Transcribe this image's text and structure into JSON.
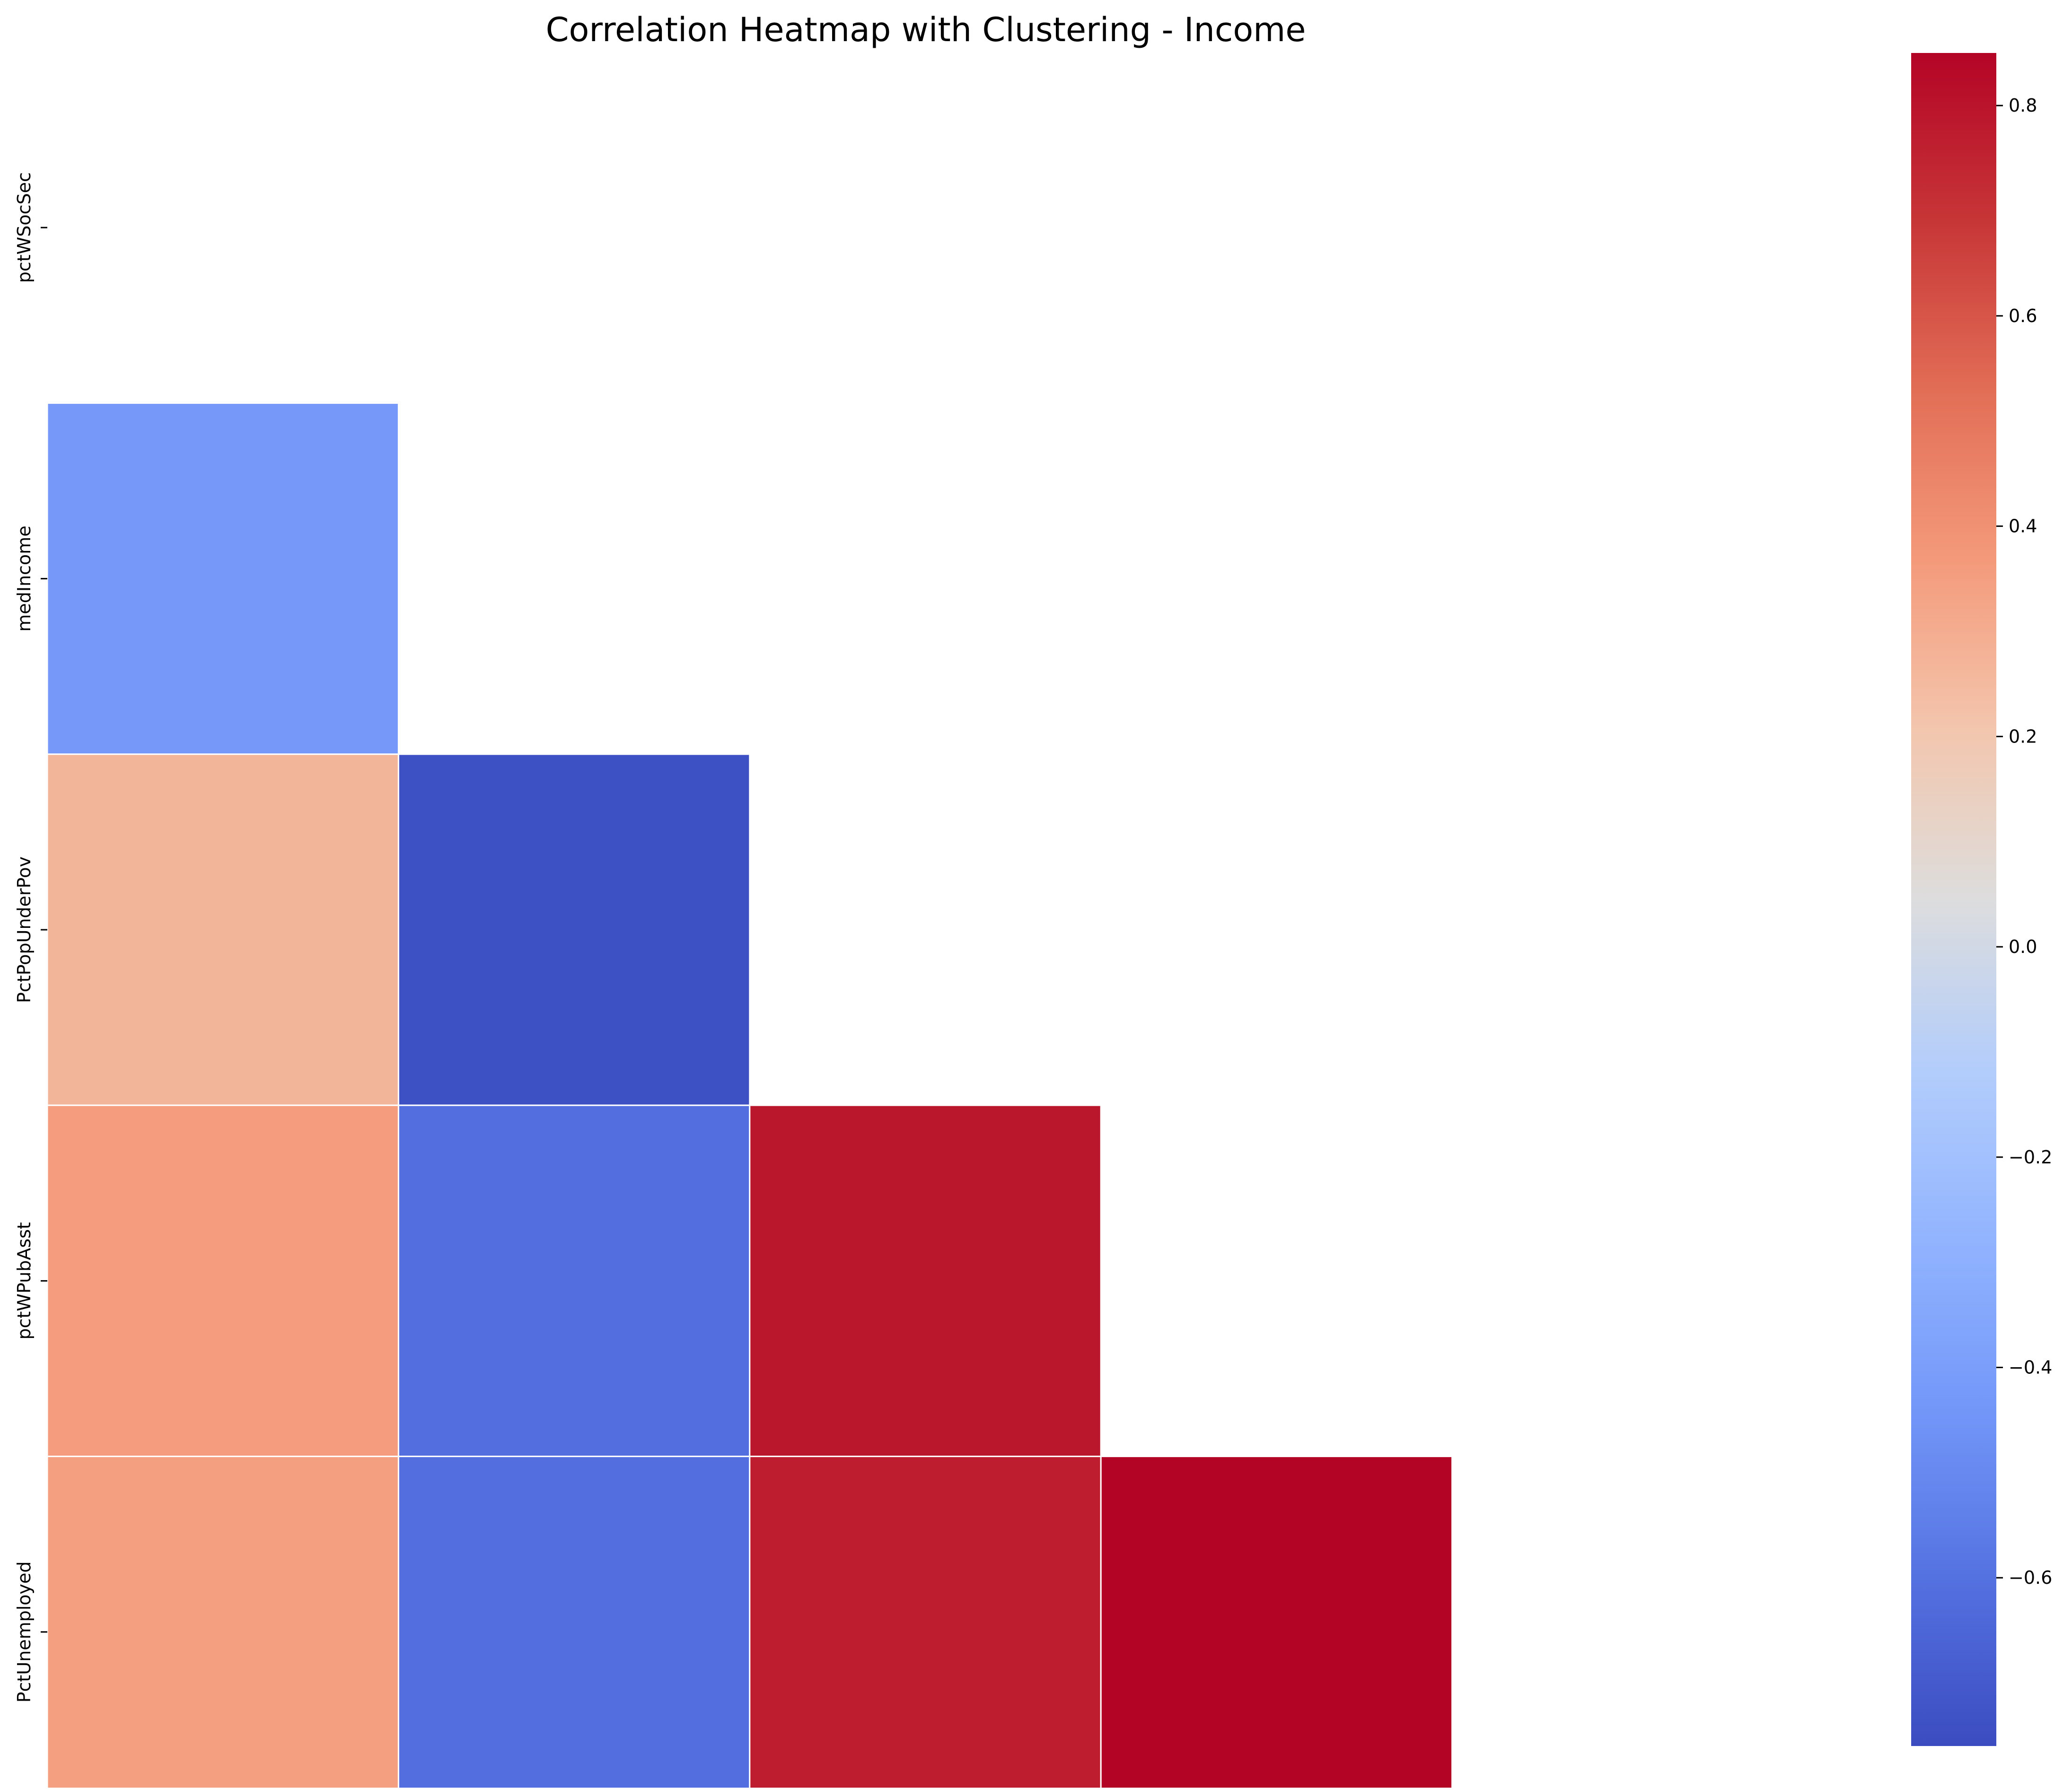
{
  "chart_data": {
    "type": "heatmap",
    "title": "Correlation Heatmap with Clustering - Income",
    "xlabel": "",
    "ylabel": "",
    "labels": [
      "pctWSocSec",
      "medIncome",
      "PctPopUnderPov",
      "pctWPubAsst",
      "PctUnemployed"
    ],
    "mask": "upper triangle including diagonal",
    "cells": [
      {
        "row": "medIncome",
        "col": "pctWSocSec",
        "value": -0.43
      },
      {
        "row": "PctPopUnderPov",
        "col": "pctWSocSec",
        "value": 0.27
      },
      {
        "row": "PctPopUnderPov",
        "col": "medIncome",
        "value": -0.74
      },
      {
        "row": "pctWPubAsst",
        "col": "pctWSocSec",
        "value": 0.36
      },
      {
        "row": "pctWPubAsst",
        "col": "medIncome",
        "value": -0.61
      },
      {
        "row": "pctWPubAsst",
        "col": "PctPopUnderPov",
        "value": 0.79
      },
      {
        "row": "PctUnemployed",
        "col": "pctWSocSec",
        "value": 0.35
      },
      {
        "row": "PctUnemployed",
        "col": "medIncome",
        "value": -0.61
      },
      {
        "row": "PctUnemployed",
        "col": "PctPopUnderPov",
        "value": 0.77
      },
      {
        "row": "PctUnemployed",
        "col": "pctWPubAsst",
        "value": 0.85
      }
    ],
    "colormap": "coolwarm",
    "colorbar": {
      "vmin": -0.76,
      "vmax": 0.85,
      "ticks": [
        -0.6,
        -0.4,
        -0.2,
        0.0,
        0.2,
        0.4,
        0.6,
        0.8
      ],
      "tick_labels": [
        "−0.6",
        "−0.4",
        "−0.2",
        "0.0",
        "0.2",
        "0.4",
        "0.6",
        "0.8"
      ]
    },
    "grid": false,
    "legend": "colorbar right"
  }
}
